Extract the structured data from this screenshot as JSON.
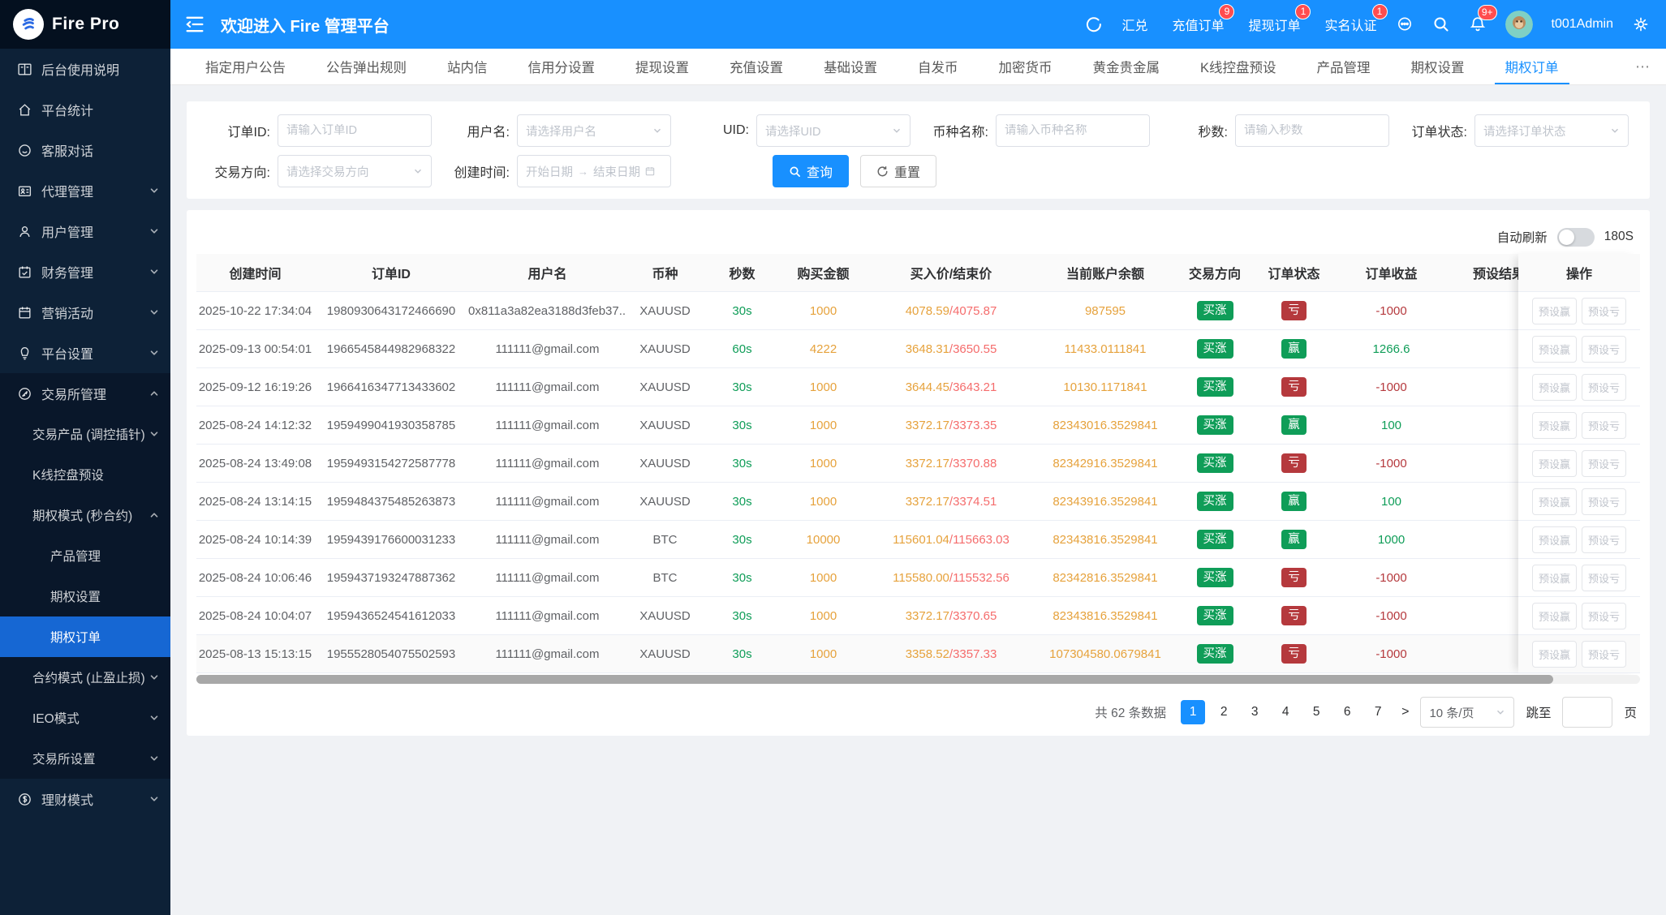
{
  "brand": {
    "name": "Fire Pro"
  },
  "topbar": {
    "welcome": "欢迎进入 Fire 管理平台",
    "items": [
      {
        "label": "汇兑",
        "badge": ""
      },
      {
        "label": "充值订单",
        "badge": "9"
      },
      {
        "label": "提现订单",
        "badge": "1"
      },
      {
        "label": "实名认证",
        "badge": "1"
      }
    ],
    "bell_badge": "9+",
    "username": "t001Admin"
  },
  "tabs": {
    "items": [
      "指定用户公告",
      "公告弹出规则",
      "站内信",
      "信用分设置",
      "提现设置",
      "充值设置",
      "基础设置",
      "自发币",
      "加密货币",
      "黄金贵金属",
      "K线控盘预设",
      "产品管理",
      "期权设置",
      "期权订单"
    ],
    "active": "期权订单",
    "more": "⋯"
  },
  "sidebar": {
    "items": [
      {
        "label": "后台使用说明",
        "icon": "book-icon"
      },
      {
        "label": "平台统计",
        "icon": "home-icon"
      },
      {
        "label": "客服对话",
        "icon": "chat-icon"
      },
      {
        "label": "代理管理",
        "icon": "agent-icon",
        "chevron": "down"
      },
      {
        "label": "用户管理",
        "icon": "user-icon",
        "chevron": "down"
      },
      {
        "label": "财务管理",
        "icon": "finance-icon",
        "chevron": "down"
      },
      {
        "label": "营销活动",
        "icon": "calendar-icon",
        "chevron": "down"
      },
      {
        "label": "平台设置",
        "icon": "platform-icon",
        "chevron": "down"
      },
      {
        "label": "交易所管理",
        "icon": "exchange-icon",
        "chevron": "up",
        "expanded": true,
        "children": [
          {
            "label": "交易产品 (调控插针)",
            "chevron": "down"
          },
          {
            "label": "K线控盘预设"
          },
          {
            "label": "期权模式 (秒合约)",
            "chevron": "up",
            "children": [
              {
                "label": "产品管理"
              },
              {
                "label": "期权设置"
              },
              {
                "label": "期权订单",
                "active": true
              }
            ]
          },
          {
            "label": "合约模式 (止盈止损)",
            "chevron": "down"
          },
          {
            "label": "IEO模式",
            "chevron": "down"
          },
          {
            "label": "交易所设置",
            "chevron": "down"
          }
        ]
      },
      {
        "label": "理财模式",
        "icon": "money-icon",
        "chevron": "down"
      }
    ]
  },
  "filters": {
    "order_id": {
      "label": "订单ID:",
      "placeholder": "请输入订单ID"
    },
    "username": {
      "label": "用户名:",
      "placeholder": "请选择用户名"
    },
    "uid": {
      "label": "UID:",
      "placeholder": "请选择UID"
    },
    "coin": {
      "label": "币种名称:",
      "placeholder": "请输入币种名称"
    },
    "seconds": {
      "label": "秒数:",
      "placeholder": "请输入秒数"
    },
    "status": {
      "label": "订单状态:",
      "placeholder": "请选择订单状态"
    },
    "direction": {
      "label": "交易方向:",
      "placeholder": "请选择交易方向"
    },
    "created": {
      "label": "创建时间:",
      "start": "开始日期",
      "end": "结束日期",
      "arrow": "→"
    },
    "search": "查询",
    "reset": "重置"
  },
  "auto_refresh": {
    "label": "自动刷新",
    "interval": "180S",
    "enabled": false
  },
  "table": {
    "headers": [
      "创建时间",
      "订单ID",
      "用户名",
      "币种",
      "秒数",
      "购买金额",
      "买入价/结束价",
      "当前账户余额",
      "交易方向",
      "订单状态",
      "订单收益",
      "预设结果",
      "操作"
    ],
    "action_buttons": [
      "预设赢",
      "预设亏"
    ],
    "rows": [
      {
        "created": "2025-10-22 17:34:04",
        "order_id": "1980930643172466690",
        "user": "0x811a3a82ea3188d3feb37...",
        "coin": "XAUUSD",
        "seconds": "30s",
        "amount": "1000",
        "buy_price": "4078.59",
        "end_price": "4075.87",
        "balance": "987595",
        "direction": "买涨",
        "status": "亏",
        "profit": "-1000",
        "preset": ""
      },
      {
        "created": "2025-09-13 00:54:01",
        "order_id": "1966545844982968322",
        "user": "111111@gmail.com",
        "coin": "XAUUSD",
        "seconds": "60s",
        "amount": "4222",
        "buy_price": "3648.31",
        "end_price": "3650.55",
        "balance": "11433.0111841",
        "direction": "买涨",
        "status": "赢",
        "profit": "1266.6",
        "preset": ""
      },
      {
        "created": "2025-09-12 16:19:26",
        "order_id": "1966416347713433602",
        "user": "111111@gmail.com",
        "coin": "XAUUSD",
        "seconds": "30s",
        "amount": "1000",
        "buy_price": "3644.45",
        "end_price": "3643.21",
        "balance": "10130.1171841",
        "direction": "买涨",
        "status": "亏",
        "profit": "-1000",
        "preset": ""
      },
      {
        "created": "2025-08-24 14:12:32",
        "order_id": "1959499041930358785",
        "user": "111111@gmail.com",
        "coin": "XAUUSD",
        "seconds": "30s",
        "amount": "1000",
        "buy_price": "3372.17",
        "end_price": "3373.35",
        "balance": "82343016.3529841",
        "direction": "买涨",
        "status": "赢",
        "profit": "100",
        "preset": ""
      },
      {
        "created": "2025-08-24 13:49:08",
        "order_id": "1959493154272587778",
        "user": "111111@gmail.com",
        "coin": "XAUUSD",
        "seconds": "30s",
        "amount": "1000",
        "buy_price": "3372.17",
        "end_price": "3370.88",
        "balance": "82342916.3529841",
        "direction": "买涨",
        "status": "亏",
        "profit": "-1000",
        "preset": ""
      },
      {
        "created": "2025-08-24 13:14:15",
        "order_id": "1959484375485263873",
        "user": "111111@gmail.com",
        "coin": "XAUUSD",
        "seconds": "30s",
        "amount": "1000",
        "buy_price": "3372.17",
        "end_price": "3374.51",
        "balance": "82343916.3529841",
        "direction": "买涨",
        "status": "赢",
        "profit": "100",
        "preset": ""
      },
      {
        "created": "2025-08-24 10:14:39",
        "order_id": "1959439176600031233",
        "user": "111111@gmail.com",
        "coin": "BTC",
        "seconds": "30s",
        "amount": "10000",
        "buy_price": "115601.04",
        "end_price": "115663.03",
        "balance": "82343816.3529841",
        "direction": "买涨",
        "status": "赢",
        "profit": "1000",
        "preset": ""
      },
      {
        "created": "2025-08-24 10:06:46",
        "order_id": "1959437193247887362",
        "user": "111111@gmail.com",
        "coin": "BTC",
        "seconds": "30s",
        "amount": "1000",
        "buy_price": "115580.00",
        "end_price": "115532.56",
        "balance": "82342816.3529841",
        "direction": "买涨",
        "status": "亏",
        "profit": "-1000",
        "preset": ""
      },
      {
        "created": "2025-08-24 10:04:07",
        "order_id": "1959436524541612033",
        "user": "111111@gmail.com",
        "coin": "XAUUSD",
        "seconds": "30s",
        "amount": "1000",
        "buy_price": "3372.17",
        "end_price": "3370.65",
        "balance": "82343816.3529841",
        "direction": "买涨",
        "status": "亏",
        "profit": "-1000",
        "preset": ""
      },
      {
        "created": "2025-08-13 15:13:15",
        "order_id": "1955528054075502593",
        "user": "111111@gmail.com",
        "coin": "XAUUSD",
        "seconds": "30s",
        "amount": "1000",
        "buy_price": "3358.52",
        "end_price": "3357.33",
        "balance": "107304580.0679841",
        "direction": "买涨",
        "status": "亏",
        "profit": "-1000",
        "preset": ""
      }
    ]
  },
  "pagination": {
    "total_text": "共 62 条数据",
    "pages": [
      "1",
      "2",
      "3",
      "4",
      "5",
      "6",
      "7"
    ],
    "active_page": "1",
    "next": ">",
    "page_size": "10 条/页",
    "jump_prefix": "跳至",
    "jump_suffix": "页"
  }
}
